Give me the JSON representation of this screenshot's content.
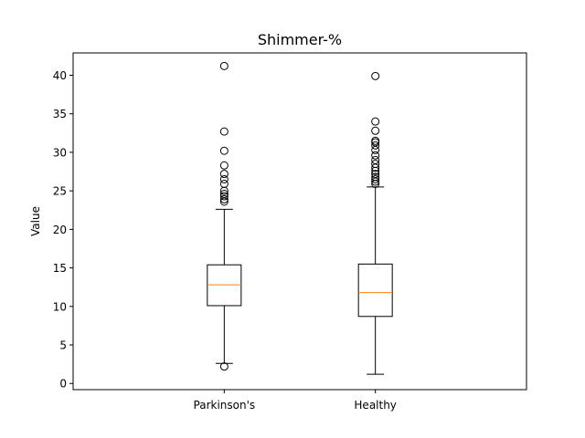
{
  "chart_data": {
    "type": "boxplot",
    "title": "Shimmer-%",
    "xlabel": "",
    "ylabel": "Value",
    "ylim": [
      -0.8,
      42.9
    ],
    "yticks": [
      0,
      5,
      10,
      15,
      20,
      25,
      30,
      35,
      40
    ],
    "grid": false,
    "categories": [
      "Parkinson's",
      "Healthy"
    ],
    "boxes": [
      {
        "label": "Parkinson's",
        "whisker_low": 2.6,
        "q1": 10.1,
        "median": 12.8,
        "q3": 15.4,
        "whisker_high": 22.6,
        "outliers": [
          2.2,
          23.6,
          23.9,
          24.3,
          24.6,
          25.0,
          25.9,
          26.5,
          27.2,
          28.3,
          30.2,
          32.7,
          41.2
        ]
      },
      {
        "label": "Healthy",
        "whisker_low": 1.2,
        "q1": 8.7,
        "median": 11.8,
        "q3": 15.5,
        "whisker_high": 25.5,
        "outliers": [
          25.9,
          26.2,
          26.5,
          26.8,
          27.2,
          27.6,
          28.0,
          28.5,
          29.0,
          29.6,
          30.3,
          30.9,
          31.3,
          31.5,
          32.8,
          34.0,
          39.9
        ]
      }
    ],
    "colors": {
      "box": "#000000",
      "median": "#ff7f0e",
      "whisker": "#000000",
      "outlier": "#000000"
    }
  }
}
